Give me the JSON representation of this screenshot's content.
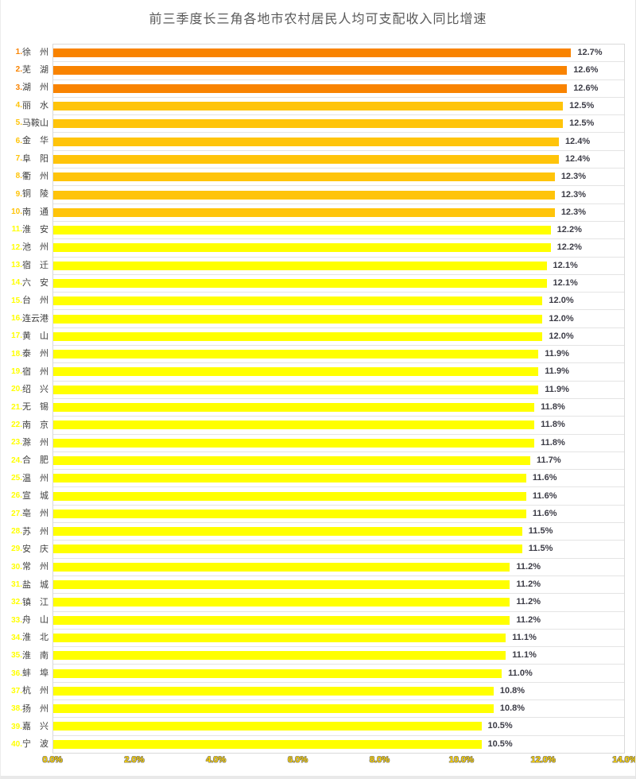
{
  "window": {
    "background": "#FFFFFF",
    "frame_color": "#ECECEC"
  },
  "chart_data": {
    "type": "bar",
    "orientation": "horizontal",
    "title": "前三季度长三角各地市农村居民人均可支配收入同比增速",
    "xlabel": "",
    "ylabel": "",
    "value_unit": "%",
    "xlim": [
      0,
      14
    ],
    "x_ticks": [
      "0.0%",
      "2.0%",
      "4.0%",
      "6.0%",
      "8.0%",
      "10.0%",
      "12.0%",
      "14.0%"
    ],
    "grid": "horizontal category separators, light gray",
    "legend": "none",
    "colors": {
      "rank_1_3_bar": "#F98300",
      "rank_4_10_bar": "#FFC40A",
      "rank_11_40_bar": "#FFFF00",
      "gridline": "#E4E4E4",
      "plot_border": "#D9D9D9",
      "value_label": "#3C3C46",
      "category_name": "#404040",
      "axis_label_fill": "#FFD400",
      "axis_label_outline": "#6E6E6E",
      "title": "#595959"
    },
    "items": [
      {
        "rank": 1,
        "name": "徐　州",
        "value": 12.7,
        "label": "12.7%",
        "color": "#F98300"
      },
      {
        "rank": 2,
        "name": "芜　湖",
        "value": 12.6,
        "label": "12.6%",
        "color": "#F98300"
      },
      {
        "rank": 3,
        "name": "湖　州",
        "value": 12.6,
        "label": "12.6%",
        "color": "#F98300"
      },
      {
        "rank": 4,
        "name": "丽　水",
        "value": 12.5,
        "label": "12.5%",
        "color": "#FFC40A"
      },
      {
        "rank": 5,
        "name": "马鞍山",
        "value": 12.5,
        "label": "12.5%",
        "color": "#FFC40A"
      },
      {
        "rank": 6,
        "name": "金　华",
        "value": 12.4,
        "label": "12.4%",
        "color": "#FFC40A"
      },
      {
        "rank": 7,
        "name": "阜　阳",
        "value": 12.4,
        "label": "12.4%",
        "color": "#FFC40A"
      },
      {
        "rank": 8,
        "name": "衢　州",
        "value": 12.3,
        "label": "12.3%",
        "color": "#FFC40A"
      },
      {
        "rank": 9,
        "name": "铜　陵",
        "value": 12.3,
        "label": "12.3%",
        "color": "#FFC40A"
      },
      {
        "rank": 10,
        "name": "南　通",
        "value": 12.3,
        "label": "12.3%",
        "color": "#FFC40A"
      },
      {
        "rank": 11,
        "name": "淮　安",
        "value": 12.2,
        "label": "12.2%",
        "color": "#FFFF00"
      },
      {
        "rank": 12,
        "name": "池　州",
        "value": 12.2,
        "label": "12.2%",
        "color": "#FFFF00"
      },
      {
        "rank": 13,
        "name": "宿　迁",
        "value": 12.1,
        "label": "12.1%",
        "color": "#FFFF00"
      },
      {
        "rank": 14,
        "name": "六　安",
        "value": 12.1,
        "label": "12.1%",
        "color": "#FFFF00"
      },
      {
        "rank": 15,
        "name": "台　州",
        "value": 12.0,
        "label": "12.0%",
        "color": "#FFFF00"
      },
      {
        "rank": 16,
        "name": "连云港",
        "value": 12.0,
        "label": "12.0%",
        "color": "#FFFF00"
      },
      {
        "rank": 17,
        "name": "黄　山",
        "value": 12.0,
        "label": "12.0%",
        "color": "#FFFF00"
      },
      {
        "rank": 18,
        "name": "泰　州",
        "value": 11.9,
        "label": "11.9%",
        "color": "#FFFF00"
      },
      {
        "rank": 19,
        "name": "宿　州",
        "value": 11.9,
        "label": "11.9%",
        "color": "#FFFF00"
      },
      {
        "rank": 20,
        "name": "绍　兴",
        "value": 11.9,
        "label": "11.9%",
        "color": "#FFFF00"
      },
      {
        "rank": 21,
        "name": "无　锡",
        "value": 11.8,
        "label": "11.8%",
        "color": "#FFFF00"
      },
      {
        "rank": 22,
        "name": "南　京",
        "value": 11.8,
        "label": "11.8%",
        "color": "#FFFF00"
      },
      {
        "rank": 23,
        "name": "滁　州",
        "value": 11.8,
        "label": "11.8%",
        "color": "#FFFF00"
      },
      {
        "rank": 24,
        "name": "合　肥",
        "value": 11.7,
        "label": "11.7%",
        "color": "#FFFF00"
      },
      {
        "rank": 25,
        "name": "温　州",
        "value": 11.6,
        "label": "11.6%",
        "color": "#FFFF00"
      },
      {
        "rank": 26,
        "name": "宣　城",
        "value": 11.6,
        "label": "11.6%",
        "color": "#FFFF00"
      },
      {
        "rank": 27,
        "name": "亳　州",
        "value": 11.6,
        "label": "11.6%",
        "color": "#FFFF00"
      },
      {
        "rank": 28,
        "name": "苏　州",
        "value": 11.5,
        "label": "11.5%",
        "color": "#FFFF00"
      },
      {
        "rank": 29,
        "name": "安　庆",
        "value": 11.5,
        "label": "11.5%",
        "color": "#FFFF00"
      },
      {
        "rank": 30,
        "name": "常　州",
        "value": 11.2,
        "label": "11.2%",
        "color": "#FFFF00"
      },
      {
        "rank": 31,
        "name": "盐　城",
        "value": 11.2,
        "label": "11.2%",
        "color": "#FFFF00"
      },
      {
        "rank": 32,
        "name": "镇　江",
        "value": 11.2,
        "label": "11.2%",
        "color": "#FFFF00"
      },
      {
        "rank": 33,
        "name": "舟　山",
        "value": 11.2,
        "label": "11.2%",
        "color": "#FFFF00"
      },
      {
        "rank": 34,
        "name": "淮　北",
        "value": 11.1,
        "label": "11.1%",
        "color": "#FFFF00"
      },
      {
        "rank": 35,
        "name": "淮　南",
        "value": 11.1,
        "label": "11.1%",
        "color": "#FFFF00"
      },
      {
        "rank": 36,
        "name": "蚌　埠",
        "value": 11.0,
        "label": "11.0%",
        "color": "#FFFF00"
      },
      {
        "rank": 37,
        "name": "杭　州",
        "value": 10.8,
        "label": "10.8%",
        "color": "#FFFF00"
      },
      {
        "rank": 38,
        "name": "扬　州",
        "value": 10.8,
        "label": "10.8%",
        "color": "#FFFF00"
      },
      {
        "rank": 39,
        "name": "嘉　兴",
        "value": 10.5,
        "label": "10.5%",
        "color": "#FFFF00"
      },
      {
        "rank": 40,
        "name": "宁　波",
        "value": 10.5,
        "label": "10.5%",
        "color": "#FFFF00"
      }
    ]
  }
}
